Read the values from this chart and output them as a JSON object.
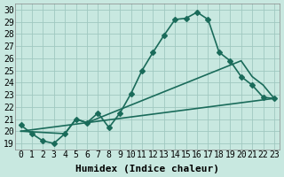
{
  "xlabel": "Humidex (Indice chaleur)",
  "xlim": [
    -0.5,
    23.5
  ],
  "ylim": [
    18.5,
    30.5
  ],
  "xticks": [
    0,
    1,
    2,
    3,
    4,
    5,
    6,
    7,
    8,
    9,
    10,
    11,
    12,
    13,
    14,
    15,
    16,
    17,
    18,
    19,
    20,
    21,
    22,
    23
  ],
  "yticks": [
    19,
    20,
    21,
    22,
    23,
    24,
    25,
    26,
    27,
    28,
    29,
    30
  ],
  "background_color": "#c8e8e0",
  "grid_color": "#a0c8c0",
  "line_color": "#1a6b5a",
  "line1_x": [
    0,
    1,
    2,
    3,
    4,
    5,
    6,
    7,
    8,
    9,
    10,
    11,
    12,
    13,
    14,
    15,
    16,
    17,
    18,
    19,
    20,
    21,
    22,
    23
  ],
  "line1_y": [
    20.5,
    19.8,
    19.2,
    19.0,
    19.8,
    21.0,
    20.7,
    21.5,
    20.3,
    21.5,
    23.1,
    25.0,
    26.5,
    27.9,
    29.2,
    29.3,
    29.8,
    29.2,
    26.5,
    25.8,
    24.5,
    23.8,
    22.8,
    22.7
  ],
  "line2_x": [
    0,
    23
  ],
  "line2_y": [
    20.0,
    22.7
  ],
  "line3_x": [
    0,
    4,
    5,
    6,
    20,
    21,
    22,
    23
  ],
  "line3_y": [
    20.0,
    19.8,
    21.0,
    20.7,
    25.8,
    24.5,
    23.8,
    22.7
  ],
  "marker_size": 3.0,
  "line_width": 1.2,
  "font_size_label": 8,
  "font_size_tick": 7
}
